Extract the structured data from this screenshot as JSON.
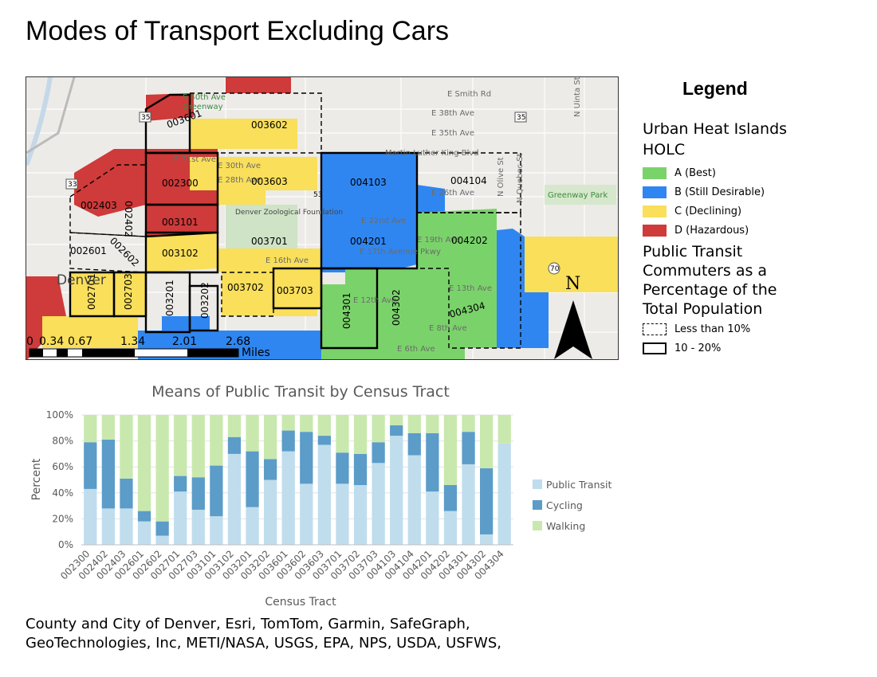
{
  "title": "Modes of Transport Excluding Cars",
  "legend": {
    "heading": "Legend",
    "uhi_title_line1": "Urban Heat Islands",
    "uhi_title_line2": "HOLC",
    "holc": [
      {
        "label": "A (Best)",
        "color": "#7ad36a"
      },
      {
        "label": "B (Still Desirable)",
        "color": "#2f86f0"
      },
      {
        "label": "C (Declining)",
        "color": "#f9df5a"
      },
      {
        "label": "D (Hazardous)",
        "color": "#cf3a3a"
      }
    ],
    "pt_title_lines": [
      "Public Transit",
      "Commuters as a",
      "Percentage of the",
      "Total Population"
    ],
    "pt_classes": [
      {
        "label": "Less than 10%",
        "style": "dashed"
      },
      {
        "label": "10 - 20%",
        "style": "solid"
      }
    ]
  },
  "map": {
    "tracts": [
      "003601",
      "003602",
      "002300",
      "003603",
      "004103",
      "004104",
      "002403",
      "002402",
      "003101",
      "003701",
      "004201",
      "004202",
      "002601",
      "002602",
      "003102",
      "002701",
      "002703",
      "003201",
      "003202",
      "003702",
      "003703",
      "004301",
      "004302",
      "004304"
    ],
    "streets": [
      "E Smith Rd",
      "E 38th Ave",
      "E 35th Ave",
      "Martin Luther King Blvd",
      "E 31st Ave",
      "E 30th Ave",
      "E 28th Ave",
      "E 26th Ave",
      "E 22nd Ave",
      "E 19th Ave",
      "E 17th Avenue Pkwy",
      "E 16th Ave",
      "E 13th Ave",
      "E 12th Ave",
      "E 8th Ave",
      "E 6th Ave",
      "N Uinta St",
      "N Olive St",
      "N Quebec St",
      "Greenway Park",
      "Denver Zoological Foundation",
      "E 40th Ave",
      "Greenway"
    ],
    "highways": [
      "35",
      "35",
      "33",
      "53",
      "70"
    ],
    "city_label": "Denver",
    "north_label": "N",
    "scale": {
      "ticks": [
        "0",
        "0.34",
        "0.67",
        "1.34",
        "2.01",
        "2.68"
      ],
      "unit": "Miles"
    }
  },
  "chart_data": {
    "type": "bar",
    "stacked": true,
    "title": "Means of Public Transit by Census Tract",
    "xlabel": "Census Tract",
    "ylabel": "Percent",
    "ylim": [
      0,
      100
    ],
    "yticks": [
      "0%",
      "20%",
      "40%",
      "60%",
      "80%",
      "100%"
    ],
    "categories": [
      "002300",
      "002402",
      "002403",
      "002601",
      "002602",
      "002701",
      "002703",
      "003101",
      "003102",
      "003201",
      "003202",
      "003601",
      "003602",
      "003603",
      "003701",
      "003702",
      "003703",
      "004103",
      "004104",
      "004201",
      "004202",
      "004301",
      "004302",
      "004304"
    ],
    "series": [
      {
        "name": "Public Transit",
        "color": "#bfdded",
        "values": [
          43,
          28,
          28,
          18,
          7,
          41,
          27,
          22,
          70,
          29,
          50,
          72,
          47,
          77,
          47,
          46,
          63,
          84,
          69,
          41,
          26,
          62,
          8,
          78
        ]
      },
      {
        "name": "Cycling",
        "color": "#5b9cc9",
        "values": [
          36,
          53,
          23,
          8,
          11,
          12,
          25,
          39,
          13,
          43,
          16,
          16,
          40,
          7,
          24,
          24,
          16,
          8,
          17,
          45,
          20,
          25,
          51,
          0
        ]
      },
      {
        "name": "Walking",
        "color": "#c9e8ad",
        "values": [
          21,
          19,
          49,
          74,
          82,
          47,
          48,
          39,
          17,
          28,
          34,
          12,
          13,
          16,
          29,
          30,
          21,
          8,
          14,
          14,
          54,
          13,
          41,
          22
        ]
      }
    ],
    "legend_position": "right"
  },
  "credits": {
    "line1": "County and City of Denver, Esri, TomTom, Garmin, SafeGraph,",
    "line2": "GeoTechnologies, Inc, METI/NASA, USGS, EPA, NPS, USDA, USFWS,"
  }
}
